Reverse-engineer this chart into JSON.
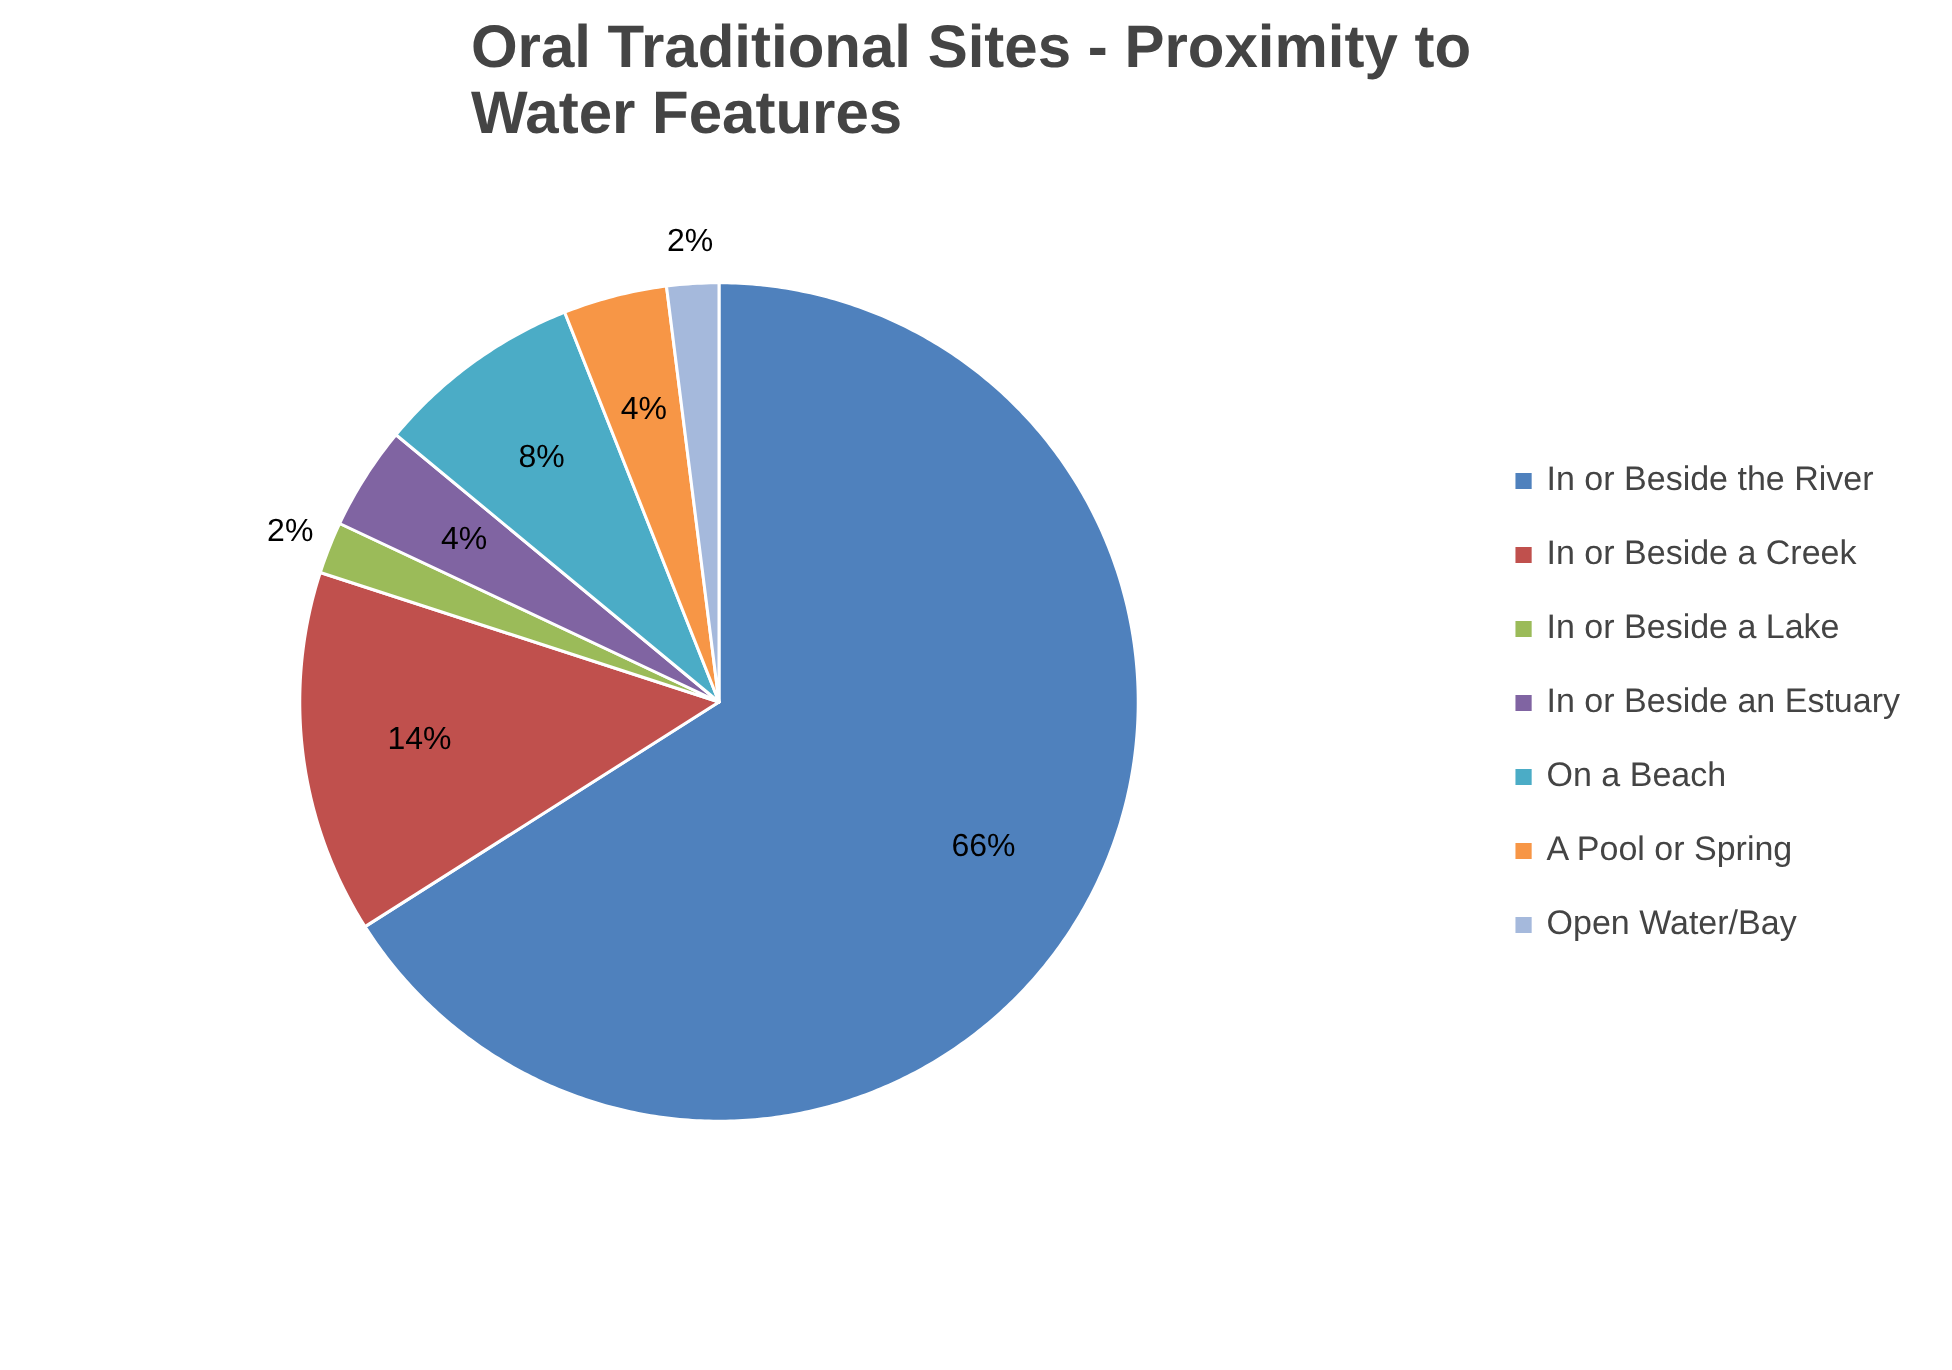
{
  "chart_data": {
    "type": "pie",
    "title": "Oral Traditional Sites - Proximity to Water Features",
    "categories": [
      "In or Beside the River",
      "In or Beside a Creek",
      "In or Beside a Lake",
      "In or Beside an Estuary",
      "On a Beach",
      "A Pool or Spring",
      "Open Water/Bay"
    ],
    "values": [
      66,
      14,
      2,
      4,
      8,
      4,
      2
    ],
    "colors": [
      "#4f81bd",
      "#c0504d",
      "#9bbb59",
      "#8064a2",
      "#4bacc6",
      "#f79646",
      "#a5b9dc"
    ],
    "value_labels": [
      "66%",
      "14%",
      "2%",
      "4%",
      "8%",
      "4%",
      "2%"
    ],
    "legend": "right"
  }
}
